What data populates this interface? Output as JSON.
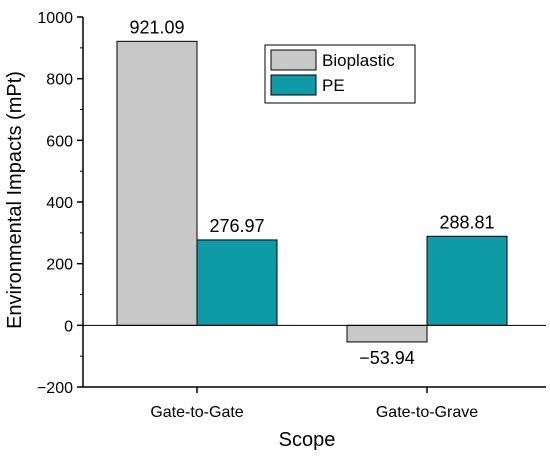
{
  "chart_data": {
    "type": "bar",
    "categories": [
      "Gate-to-Gate",
      "Gate-to-Grave"
    ],
    "series": [
      {
        "name": "Bioplastic",
        "values": [
          921.09,
          -53.94
        ],
        "color": "#c8c8c8"
      },
      {
        "name": "PE",
        "values": [
          276.97,
          288.81
        ],
        "color": "#0e9aa7"
      }
    ],
    "data_labels": [
      [
        "921.09",
        "−53.94"
      ],
      [
        "276.97",
        "288.81"
      ]
    ],
    "xlabel": "Scope",
    "ylabel": "Environmental Impacts (mPt)",
    "ylim": [
      -200,
      1000
    ],
    "yticks": [
      -200,
      0,
      200,
      400,
      600,
      800,
      1000
    ],
    "ytick_labels": [
      "−200",
      "0",
      "200",
      "400",
      "600",
      "800",
      "1000"
    ],
    "legend_position": "top-right",
    "grid": false,
    "zero_line": true
  }
}
